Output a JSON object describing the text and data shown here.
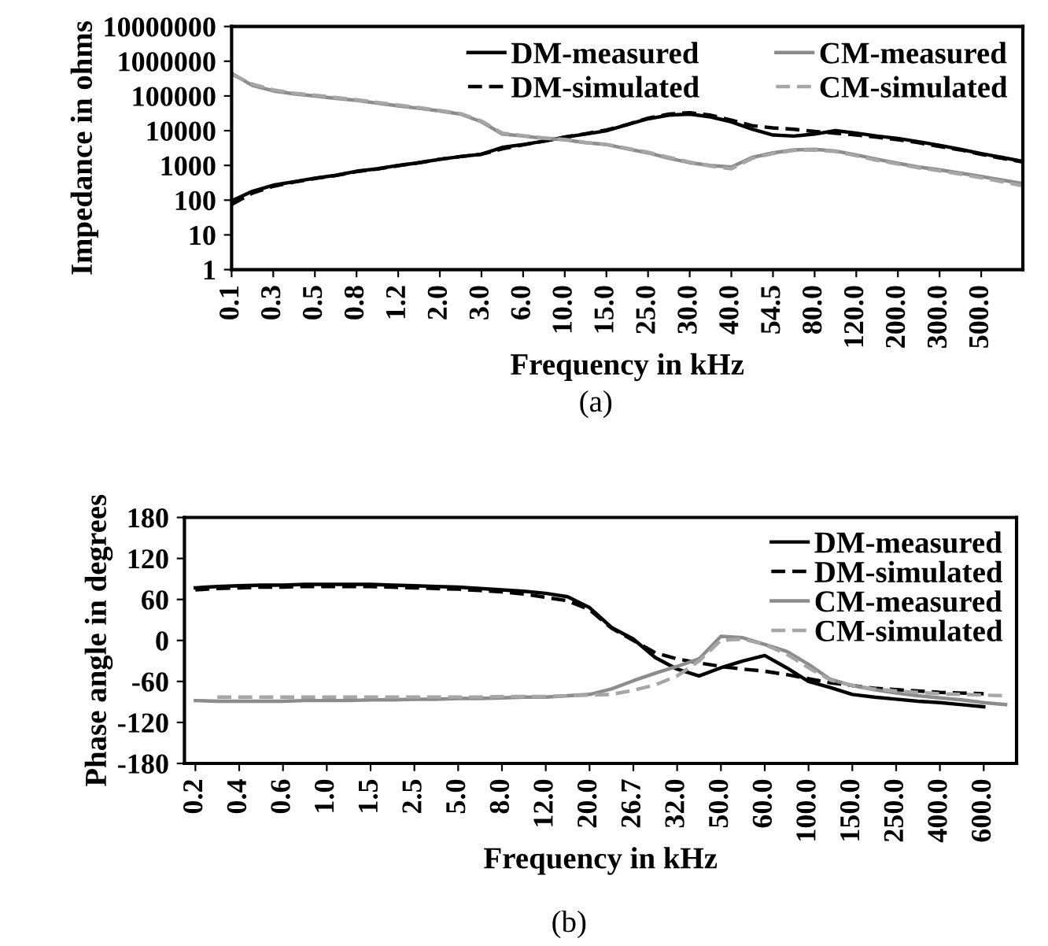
{
  "chart_data": [
    {
      "type": "line",
      "ylabel": "Impedance in ohms",
      "xlabel": "Frequency in kHz",
      "annotations": [
        "(a)"
      ],
      "log": "y",
      "categories": [
        "0.1",
        null,
        "0.3",
        null,
        "0.5",
        null,
        "0.8",
        null,
        "1.2",
        null,
        "2.0",
        null,
        "3.0",
        null,
        "6.0",
        null,
        "10.0",
        null,
        "15.0",
        null,
        "25.0",
        null,
        "30.0",
        null,
        "40.0",
        null,
        "54.5",
        null,
        "80.0",
        null,
        "120.0",
        null,
        "200.0",
        null,
        "300.0",
        null,
        "500.0",
        null,
        null
      ],
      "ylim": [
        1,
        10000000
      ],
      "yticks": [
        1,
        10,
        100,
        1000,
        10000,
        100000,
        1000000,
        10000000
      ],
      "legend": "top right",
      "grid": false,
      "series": [
        {
          "name": "DM-measured",
          "color": "#000000",
          "line_style": "solid",
          "values": [
            95,
            180,
            270,
            340,
            430,
            520,
            680,
            800,
            1000,
            1200,
            1500,
            1800,
            2100,
            3300,
            4000,
            5000,
            6500,
            8000,
            10000,
            15000,
            22000,
            28000,
            30000,
            25000,
            18000,
            11000,
            7500,
            7000,
            8000,
            10000,
            8500,
            7000,
            6000,
            4800,
            3800,
            2900,
            2200,
            1700,
            1300
          ]
        },
        {
          "name": "DM-simulated",
          "color": "#000000",
          "line_style": "dashed",
          "values": [
            75,
            160,
            250,
            330,
            420,
            510,
            660,
            790,
            980,
            1200,
            1500,
            1800,
            2100,
            3000,
            3900,
            5000,
            6500,
            8200,
            10500,
            15000,
            23000,
            30000,
            33000,
            28000,
            20000,
            14000,
            12000,
            11000,
            9500,
            8500,
            7500,
            6500,
            5500,
            4500,
            3500,
            2800,
            2100,
            1600,
            1250
          ]
        },
        {
          "name": "CM-measured",
          "color": "#8c8c8c",
          "line_style": "solid",
          "values": [
            450000,
            200000,
            140000,
            115000,
            100000,
            85000,
            75000,
            62000,
            52000,
            44000,
            37000,
            30000,
            18000,
            8000,
            7000,
            6000,
            5500,
            4500,
            4000,
            3000,
            2300,
            1600,
            1200,
            1000,
            900,
            1700,
            2300,
            2800,
            2900,
            2600,
            2000,
            1500,
            1150,
            900,
            750,
            600,
            480,
            380,
            300
          ]
        },
        {
          "name": "CM-simulated",
          "color": "#a6a6a6",
          "line_style": "dashed",
          "values": [
            420000,
            220000,
            150000,
            120000,
            105000,
            90000,
            78000,
            65000,
            55000,
            46000,
            38000,
            31000,
            19000,
            8500,
            7200,
            6200,
            5600,
            4600,
            4000,
            3100,
            2400,
            1700,
            1250,
            950,
            800,
            1600,
            2200,
            2700,
            2800,
            2500,
            1900,
            1400,
            1100,
            850,
            700,
            560,
            440,
            340,
            260
          ]
        }
      ]
    },
    {
      "type": "line",
      "ylabel": "Phase angle in degrees",
      "xlabel": "Frequency in kHz",
      "annotations": [
        "(b)"
      ],
      "categories": [
        "0.2",
        null,
        "0.4",
        null,
        "0.6",
        null,
        "1.0",
        null,
        "1.5",
        null,
        "2.5",
        null,
        "5.0",
        null,
        "8.0",
        null,
        "12.0",
        null,
        "20.0",
        null,
        "26.7",
        null,
        "32.0",
        null,
        "50.0",
        null,
        "60.0",
        null,
        "100.0",
        null,
        "150.0",
        null,
        "250.0",
        null,
        "400.0",
        null,
        "600.0",
        null
      ],
      "ylim": [
        -180,
        180
      ],
      "yticks": [
        -180,
        -120,
        -60,
        0,
        60,
        120,
        180
      ],
      "legend": "top right",
      "grid": false,
      "series": [
        {
          "name": "DM-measured",
          "color": "#000000",
          "line_style": "solid",
          "values": [
            77,
            79,
            80,
            81,
            81,
            82,
            82,
            82,
            82,
            81,
            80,
            79,
            78,
            76,
            74,
            72,
            69,
            64,
            48,
            19,
            2,
            -25,
            -42,
            -52,
            -40,
            -30,
            -22,
            -40,
            -60,
            -69,
            -79,
            -83,
            -86,
            -89,
            -91,
            -94,
            -97,
            null
          ]
        },
        {
          "name": "DM-simulated",
          "color": "#000000",
          "line_style": "dashed",
          "values": [
            74,
            76,
            77,
            78,
            78,
            79,
            79,
            79,
            79,
            78,
            77,
            76,
            75,
            73,
            71,
            68,
            63,
            58,
            45,
            18,
            0,
            -18,
            -27,
            -33,
            -38,
            -42,
            -45,
            -50,
            -56,
            -62,
            -66,
            -70,
            -72,
            -74,
            -76,
            -77,
            -78,
            null
          ]
        },
        {
          "name": "CM-measured",
          "color": "#8c8c8c",
          "line_style": "solid",
          "values": [
            -88,
            -89,
            -89,
            -89,
            -89,
            -88,
            -88,
            -88,
            -87,
            -87,
            -86,
            -86,
            -85,
            -85,
            -84,
            -83,
            -83,
            -81,
            -79,
            -71,
            -59,
            -48,
            -38,
            -27,
            6,
            4,
            -6,
            -16,
            -35,
            -57,
            -66,
            -72,
            -77,
            -81,
            -84,
            -87,
            -91,
            -94
          ]
        },
        {
          "name": "CM-simulated",
          "color": "#a6a6a6",
          "line_style": "dashed",
          "values": [
            null,
            -83,
            -83,
            -83,
            -83,
            -83,
            -83,
            -83,
            -83,
            -83,
            -83,
            -83,
            -83,
            -83,
            -82,
            -82,
            -82,
            -81,
            -80,
            -79,
            -73,
            -65,
            -52,
            -30,
            0,
            2,
            -6,
            -20,
            -40,
            -58,
            -66,
            -71,
            -74,
            -76,
            -78,
            -79,
            -80,
            -81
          ]
        }
      ]
    }
  ]
}
